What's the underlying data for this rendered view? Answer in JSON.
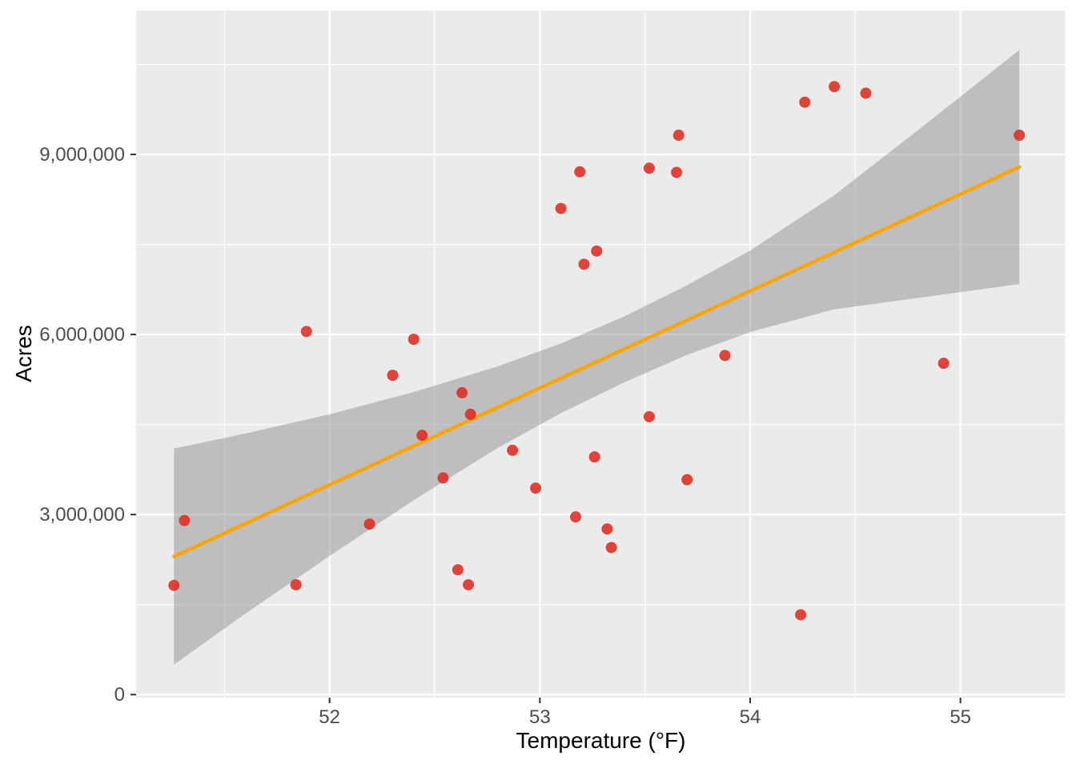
{
  "figure": {
    "background": "#FFFFFF"
  },
  "chart_data": {
    "type": "scatter",
    "title": "",
    "xlabel": "Temperature (°F)",
    "ylabel": "Acres",
    "x_domain": [
      51.08,
      55.5
    ],
    "y_domain": [
      -50000,
      11400000
    ],
    "x_ticks": [
      {
        "value": 52,
        "label": "52"
      },
      {
        "value": 53,
        "label": "53"
      },
      {
        "value": 54,
        "label": "54"
      },
      {
        "value": 55,
        "label": "55"
      }
    ],
    "y_ticks": [
      {
        "value": 0,
        "label": "0"
      },
      {
        "value": 3000000,
        "label": "3,000,000"
      },
      {
        "value": 6000000,
        "label": "6,000,000"
      },
      {
        "value": 9000000,
        "label": "9,000,000"
      }
    ],
    "x_minor_ticks": [
      51.5,
      52.5,
      53.5,
      54.5,
      55.5
    ],
    "y_minor_ticks": [
      1500000,
      4500000,
      7500000,
      10500000
    ],
    "points": [
      [
        51.26,
        1820000
      ],
      [
        51.31,
        2900000
      ],
      [
        51.84,
        1830000
      ],
      [
        51.89,
        6050000
      ],
      [
        52.19,
        2840000
      ],
      [
        52.3,
        5320000
      ],
      [
        52.4,
        5920000
      ],
      [
        52.44,
        4320000
      ],
      [
        52.54,
        3610000
      ],
      [
        52.61,
        2080000
      ],
      [
        52.63,
        5030000
      ],
      [
        52.66,
        1830000
      ],
      [
        52.67,
        4670000
      ],
      [
        52.87,
        4070000
      ],
      [
        52.98,
        3440000
      ],
      [
        53.1,
        8100000
      ],
      [
        53.17,
        2960000
      ],
      [
        53.19,
        8710000
      ],
      [
        53.21,
        7170000
      ],
      [
        53.26,
        3960000
      ],
      [
        53.27,
        7390000
      ],
      [
        53.32,
        2760000
      ],
      [
        53.34,
        2450000
      ],
      [
        53.52,
        8770000
      ],
      [
        53.52,
        4630000
      ],
      [
        53.65,
        8700000
      ],
      [
        53.66,
        9320000
      ],
      [
        53.7,
        3580000
      ],
      [
        53.88,
        5650000
      ],
      [
        54.24,
        1330000
      ],
      [
        54.26,
        9870000
      ],
      [
        54.4,
        10130000
      ],
      [
        54.55,
        10020000
      ],
      [
        54.92,
        5520000
      ],
      [
        55.28,
        9320000
      ]
    ],
    "regression_line": {
      "x1": 51.26,
      "y1": 2300000,
      "x2": 55.28,
      "y2": 8790000,
      "color": "#FFA500",
      "width": 4.5
    },
    "confidence_band": {
      "color": "#808080",
      "opacity": 0.42,
      "x": [
        51.26,
        51.6,
        52.0,
        52.4,
        52.8,
        53.1,
        53.4,
        53.7,
        54.0,
        54.4,
        54.8,
        55.28
      ],
      "upper": [
        4100000,
        4350000,
        4670000,
        5040000,
        5470000,
        5850000,
        6300000,
        6820000,
        7400000,
        8320000,
        9410000,
        10740000
      ],
      "lower": [
        500000,
        1350000,
        2310000,
        3240000,
        4110000,
        4690000,
        5200000,
        5660000,
        6040000,
        6420000,
        6610000,
        6840000
      ]
    },
    "style": {
      "panel_bg": "#EBEBEB",
      "grid_color": "#FFFFFF",
      "major_grid_width": 2.2,
      "minor_grid_width": 1.1,
      "point_color": "#E02B20",
      "point_opacity": 0.88,
      "point_radius": 7,
      "tick_mark_color": "#333333",
      "tick_label_color": "#4D4D4D",
      "tick_label_size": 24
    }
  }
}
